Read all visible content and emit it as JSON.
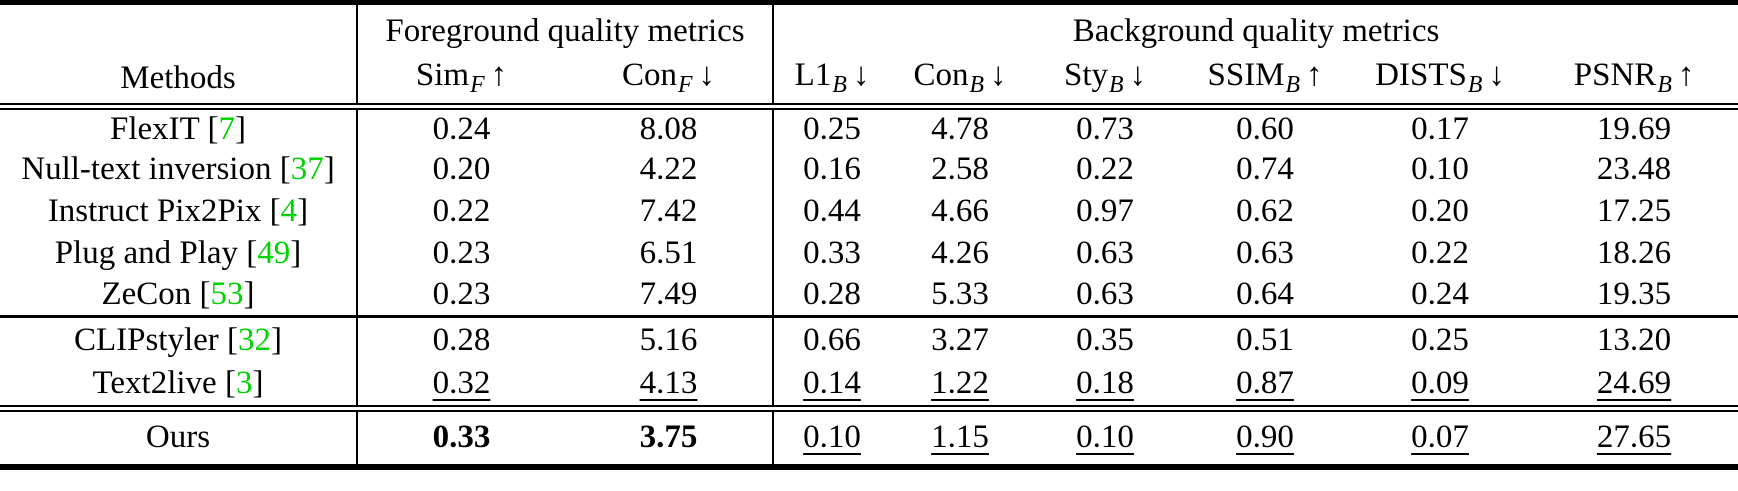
{
  "table": {
    "caption_role": "method-comparison-metrics-table",
    "group_headers": [
      "Foreground quality metrics",
      "Background quality metrics"
    ],
    "methods_header": "Methods",
    "metric_headers": [
      {
        "name": "Sim",
        "sub": "F",
        "arrow": "↑"
      },
      {
        "name": "Con",
        "sub": "F",
        "arrow": "↓"
      },
      {
        "name": "L1",
        "sub": "B",
        "arrow": "↓"
      },
      {
        "name": "Con",
        "sub": "B",
        "arrow": "↓"
      },
      {
        "name": "Sty",
        "sub": "B",
        "arrow": "↓"
      },
      {
        "name": "SSIM",
        "sub": "B",
        "arrow": "↑"
      },
      {
        "name": "DISTS",
        "sub": "B",
        "arrow": "↓"
      },
      {
        "name": "PSNR",
        "sub": "B",
        "arrow": "↑"
      }
    ],
    "rows": [
      {
        "method": "FlexIT",
        "cite": "7",
        "group": 1,
        "values": [
          "0.24",
          "8.08",
          "0.25",
          "4.78",
          "0.73",
          "0.60",
          "0.17",
          "19.69"
        ],
        "bold": [],
        "underline": []
      },
      {
        "method": "Null-text inversion",
        "cite": "37",
        "group": 1,
        "values": [
          "0.20",
          "4.22",
          "0.16",
          "2.58",
          "0.22",
          "0.74",
          "0.10",
          "23.48"
        ],
        "bold": [],
        "underline": []
      },
      {
        "method": "Instruct Pix2Pix",
        "cite": "4",
        "group": 1,
        "values": [
          "0.22",
          "7.42",
          "0.44",
          "4.66",
          "0.97",
          "0.62",
          "0.20",
          "17.25"
        ],
        "bold": [],
        "underline": []
      },
      {
        "method": "Plug and Play",
        "cite": "49",
        "group": 1,
        "values": [
          "0.23",
          "6.51",
          "0.33",
          "4.26",
          "0.63",
          "0.63",
          "0.22",
          "18.26"
        ],
        "bold": [],
        "underline": []
      },
      {
        "method": "ZeCon",
        "cite": "53",
        "group": 1,
        "values": [
          "0.23",
          "7.49",
          "0.28",
          "5.33",
          "0.63",
          "0.64",
          "0.24",
          "19.35"
        ],
        "bold": [],
        "underline": []
      },
      {
        "method": "CLIPstyler",
        "cite": "32",
        "group": 2,
        "values": [
          "0.28",
          "5.16",
          "0.66",
          "3.27",
          "0.35",
          "0.51",
          "0.25",
          "13.20"
        ],
        "bold": [],
        "underline": []
      },
      {
        "method": "Text2live",
        "cite": "3",
        "group": 2,
        "values": [
          "0.32",
          "4.13",
          "0.14",
          "1.22",
          "0.18",
          "0.87",
          "0.09",
          "24.69"
        ],
        "bold": [],
        "underline": [
          0,
          1,
          2,
          3,
          4,
          5,
          6,
          7
        ]
      },
      {
        "method": "Ours",
        "cite": "",
        "group": 3,
        "values": [
          "0.33",
          "3.75",
          "0.10",
          "1.15",
          "0.10",
          "0.90",
          "0.07",
          "27.65"
        ],
        "bold": [
          0,
          1
        ],
        "underline": [
          2,
          3,
          4,
          5,
          6,
          7
        ]
      }
    ],
    "colors": {
      "citation": "#00d400",
      "text": "#000000",
      "rule": "#000000",
      "background": "#ffffff"
    }
  }
}
